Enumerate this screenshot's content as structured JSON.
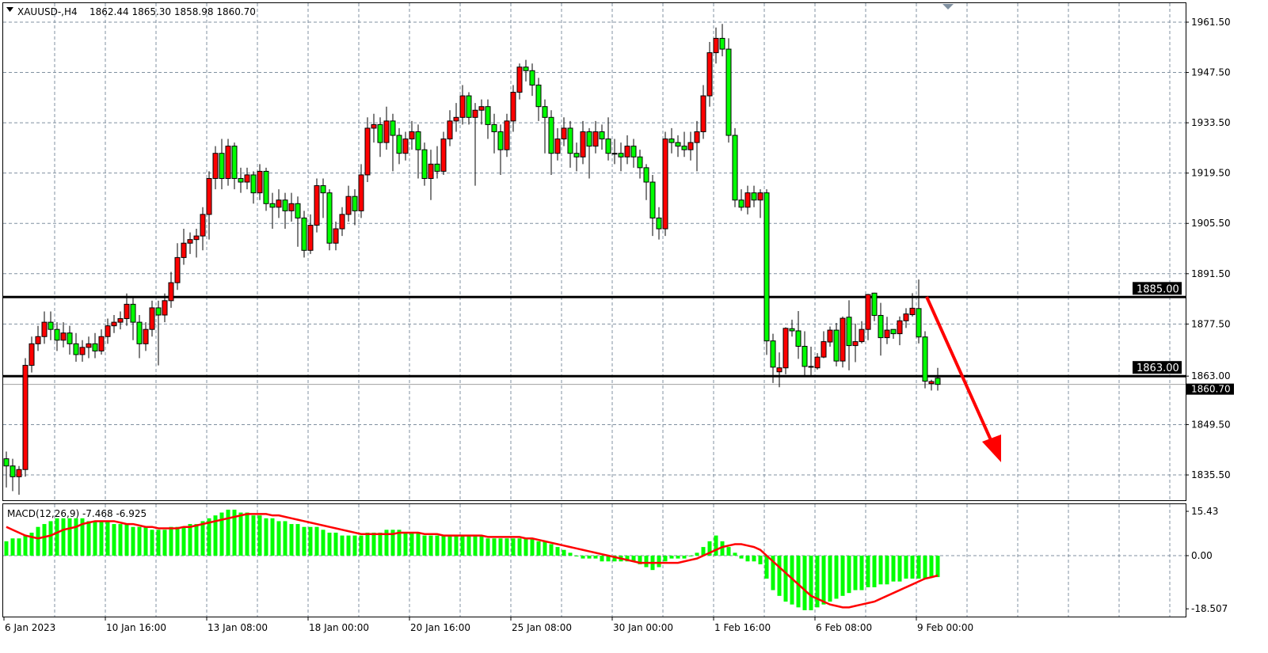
{
  "header": {
    "symbol": "XAUUSD-,H4",
    "ohlc": "1862.44 1865.30 1858.98 1860.70"
  },
  "colors": {
    "bull": "#ff0000",
    "bear": "#00ff00",
    "grid": "#8090a0",
    "macd_hist": "#00ff00",
    "macd_signal": "#ff0000",
    "arrow": "#ff0000"
  },
  "price_axis": {
    "ticks": [
      "1961.50",
      "1947.50",
      "1933.50",
      "1919.50",
      "1905.50",
      "1891.50",
      "1877.50",
      "1863.00",
      "1849.50",
      "1835.50"
    ],
    "current_price": "1860.70"
  },
  "levels": [
    {
      "price": 1885.0,
      "label": "1885.00"
    },
    {
      "price": 1863.0,
      "label": "1863.00"
    }
  ],
  "macd": {
    "label": "MACD(12,26,9) -7.468 -6.925",
    "axis": [
      "15.43",
      "0.00",
      "-18.507"
    ]
  },
  "time_axis": [
    "6 Jan 2023",
    "10 Jan 16:00",
    "13 Jan 08:00",
    "18 Jan 00:00",
    "20 Jan 16:00",
    "25 Jan 08:00",
    "30 Jan 00:00",
    "1 Feb 16:00",
    "6 Feb 08:00",
    "9 Feb 00:00"
  ],
  "chart_data": {
    "type": "candlestick",
    "timeframe": "H4",
    "y_range": [
      1830,
      1965
    ],
    "grid": true,
    "ohlc": [
      [
        1840,
        1842,
        1832,
        1838
      ],
      [
        1838,
        1840,
        1831,
        1835
      ],
      [
        1835,
        1838,
        1830,
        1837
      ],
      [
        1837,
        1868,
        1835,
        1866
      ],
      [
        1866,
        1874,
        1864,
        1872
      ],
      [
        1872,
        1877,
        1870,
        1874
      ],
      [
        1874,
        1881,
        1872,
        1878
      ],
      [
        1878,
        1881,
        1873,
        1876
      ],
      [
        1876,
        1878,
        1870,
        1873
      ],
      [
        1873,
        1878,
        1871,
        1875
      ],
      [
        1875,
        1877,
        1869,
        1872
      ],
      [
        1872,
        1875,
        1867,
        1869
      ],
      [
        1869,
        1873,
        1867,
        1871
      ],
      [
        1871,
        1874,
        1868,
        1872
      ],
      [
        1872,
        1875,
        1868,
        1870
      ],
      [
        1870,
        1876,
        1869,
        1874
      ],
      [
        1874,
        1879,
        1872,
        1877
      ],
      [
        1877,
        1880,
        1875,
        1878
      ],
      [
        1878,
        1881,
        1876,
        1879
      ],
      [
        1879,
        1886,
        1877,
        1883
      ],
      [
        1883,
        1885,
        1873,
        1878
      ],
      [
        1878,
        1880,
        1868,
        1872
      ],
      [
        1872,
        1878,
        1870,
        1876
      ],
      [
        1876,
        1884,
        1874,
        1882
      ],
      [
        1882,
        1884,
        1866,
        1880
      ],
      [
        1880,
        1886,
        1878,
        1884
      ],
      [
        1884,
        1892,
        1882,
        1889
      ],
      [
        1889,
        1900,
        1887,
        1896
      ],
      [
        1896,
        1904,
        1894,
        1900
      ],
      [
        1900,
        1903,
        1897,
        1901
      ],
      [
        1901,
        1904,
        1896,
        1902
      ],
      [
        1902,
        1910,
        1898,
        1908
      ],
      [
        1908,
        1920,
        1901,
        1918
      ],
      [
        1918,
        1927,
        1915,
        1925
      ],
      [
        1925,
        1929,
        1915,
        1918
      ],
      [
        1918,
        1929,
        1916,
        1927
      ],
      [
        1927,
        1928,
        1915,
        1918
      ],
      [
        1918,
        1921,
        1914,
        1917
      ],
      [
        1917,
        1921,
        1915,
        1919
      ],
      [
        1919,
        1920,
        1911,
        1914
      ],
      [
        1914,
        1922,
        1912,
        1920
      ],
      [
        1920,
        1921,
        1909,
        1911
      ],
      [
        1911,
        1914,
        1904,
        1910
      ],
      [
        1910,
        1915,
        1907,
        1912
      ],
      [
        1912,
        1914,
        1904,
        1909
      ],
      [
        1909,
        1914,
        1906,
        1911
      ],
      [
        1911,
        1913,
        1899,
        1907
      ],
      [
        1907,
        1909,
        1896,
        1898
      ],
      [
        1898,
        1908,
        1897,
        1905
      ],
      [
        1905,
        1918,
        1903,
        1916
      ],
      [
        1916,
        1918,
        1907,
        1914
      ],
      [
        1914,
        1915,
        1898,
        1900
      ],
      [
        1900,
        1906,
        1898,
        1904
      ],
      [
        1904,
        1910,
        1902,
        1908
      ],
      [
        1908,
        1916,
        1906,
        1913
      ],
      [
        1913,
        1915,
        1905,
        1909
      ],
      [
        1909,
        1922,
        1907,
        1919
      ],
      [
        1919,
        1935,
        1917,
        1932
      ],
      [
        1932,
        1936,
        1928,
        1933
      ],
      [
        1933,
        1935,
        1924,
        1928
      ],
      [
        1928,
        1938,
        1926,
        1934
      ],
      [
        1934,
        1936,
        1920,
        1930
      ],
      [
        1930,
        1932,
        1922,
        1925
      ],
      [
        1925,
        1931,
        1923,
        1929
      ],
      [
        1929,
        1934,
        1926,
        1931
      ],
      [
        1931,
        1933,
        1918,
        1926
      ],
      [
        1926,
        1928,
        1916,
        1918
      ],
      [
        1918,
        1926,
        1912,
        1922
      ],
      [
        1922,
        1927,
        1918,
        1920
      ],
      [
        1920,
        1931,
        1919,
        1929
      ],
      [
        1929,
        1937,
        1927,
        1934
      ],
      [
        1934,
        1939,
        1931,
        1935
      ],
      [
        1935,
        1944,
        1933,
        1941
      ],
      [
        1941,
        1942,
        1933,
        1935
      ],
      [
        1935,
        1939,
        1916,
        1937
      ],
      [
        1937,
        1940,
        1933,
        1938
      ],
      [
        1938,
        1940,
        1929,
        1933
      ],
      [
        1933,
        1936,
        1925,
        1931
      ],
      [
        1931,
        1933,
        1919,
        1926
      ],
      [
        1926,
        1936,
        1924,
        1934
      ],
      [
        1934,
        1944,
        1931,
        1942
      ],
      [
        1942,
        1950,
        1940,
        1949
      ],
      [
        1949,
        1951,
        1945,
        1948
      ],
      [
        1948,
        1950,
        1941,
        1944
      ],
      [
        1944,
        1946,
        1934,
        1938
      ],
      [
        1938,
        1940,
        1925,
        1935
      ],
      [
        1935,
        1937,
        1919,
        1925
      ],
      [
        1925,
        1932,
        1923,
        1929
      ],
      [
        1929,
        1935,
        1927,
        1932
      ],
      [
        1932,
        1934,
        1921,
        1925
      ],
      [
        1925,
        1928,
        1920,
        1924
      ],
      [
        1924,
        1934,
        1922,
        1931
      ],
      [
        1931,
        1932,
        1918,
        1927
      ],
      [
        1927,
        1934,
        1925,
        1931
      ],
      [
        1931,
        1933,
        1926,
        1929
      ],
      [
        1929,
        1935,
        1923,
        1925
      ],
      [
        1925,
        1929,
        1922,
        1925
      ],
      [
        1925,
        1928,
        1920,
        1924
      ],
      [
        1924,
        1930,
        1922,
        1927
      ],
      [
        1927,
        1929,
        1921,
        1924
      ],
      [
        1924,
        1926,
        1918,
        1921
      ],
      [
        1921,
        1922,
        1912,
        1917
      ],
      [
        1917,
        1919,
        1902,
        1907
      ],
      [
        1907,
        1910,
        1901,
        1904
      ],
      [
        1904,
        1931,
        1902,
        1929
      ],
      [
        1929,
        1932,
        1925,
        1928
      ],
      [
        1928,
        1930,
        1924,
        1927
      ],
      [
        1927,
        1931,
        1924,
        1926
      ],
      [
        1926,
        1931,
        1923,
        1928
      ],
      [
        1928,
        1934,
        1920,
        1931
      ],
      [
        1931,
        1944,
        1929,
        1941
      ],
      [
        1941,
        1956,
        1938,
        1953
      ],
      [
        1953,
        1960,
        1950,
        1957
      ],
      [
        1957,
        1961,
        1952,
        1954
      ],
      [
        1954,
        1957,
        1928,
        1930
      ],
      [
        1930,
        1932,
        1910,
        1912
      ],
      [
        1912,
        1915,
        1909,
        1910
      ],
      [
        1910,
        1916,
        1908,
        1914
      ],
      [
        1914,
        1916,
        1910,
        1912
      ],
      [
        1912,
        1915,
        1907,
        1914
      ],
      [
        1914,
        1915,
        1868.9,
        1872.8
      ],
      [
        1872.8,
        1874.8,
        1861.1,
        1865.5
      ],
      [
        1864.2,
        1869.6,
        1859.9,
        1865.3
      ],
      [
        1865.3,
        1876.6,
        1863.5,
        1876.3
      ],
      [
        1876.2,
        1878.7,
        1874.0,
        1875.6
      ],
      [
        1875.6,
        1881.1,
        1867.8,
        1871.3
      ],
      [
        1871.3,
        1875.5,
        1863.1,
        1865.7
      ],
      [
        1865.7,
        1871.2,
        1863.1,
        1865.5
      ],
      [
        1865.3,
        1869.4,
        1864.8,
        1868.3
      ],
      [
        1868.3,
        1875.5,
        1868.0,
        1872.6
      ],
      [
        1872.5,
        1876.8,
        1871.2,
        1875.8
      ],
      [
        1875.8,
        1877.8,
        1865.7,
        1867.2
      ],
      [
        1867.2,
        1879.6,
        1865.4,
        1879.1
      ],
      [
        1879.4,
        1884.1,
        1864.6,
        1871.5
      ],
      [
        1871.5,
        1877.6,
        1866.9,
        1872.6
      ],
      [
        1872.6,
        1878.3,
        1872.1,
        1876.0
      ],
      [
        1876.0,
        1885.9,
        1873.0,
        1885.7
      ],
      [
        1886.1,
        1886.2,
        1878.3,
        1879.9
      ],
      [
        1879.9,
        1883.4,
        1868.7,
        1873.7
      ],
      [
        1873.7,
        1879.5,
        1871.9,
        1875.8
      ],
      [
        1876.0,
        1876.0,
        1873.4,
        1874.8
      ],
      [
        1874.8,
        1879.6,
        1871.6,
        1878.4
      ],
      [
        1878.4,
        1881.9,
        1876.4,
        1880.3
      ],
      [
        1880.1,
        1886.1,
        1879.6,
        1881.9
      ],
      [
        1881.8,
        1889.9,
        1872.1,
        1873.9
      ],
      [
        1873.9,
        1875.5,
        1859.6,
        1861.6
      ],
      [
        1860.9,
        1862.0,
        1859.0,
        1861.5
      ],
      [
        1862.44,
        1865.3,
        1858.98,
        1860.7
      ]
    ],
    "macd_histogram": [
      5,
      6,
      6,
      7,
      8,
      10,
      11,
      12,
      13,
      13,
      13,
      13,
      13,
      12,
      12,
      12,
      12,
      11,
      11,
      11,
      10,
      10,
      10,
      9,
      9,
      9,
      10,
      10,
      10,
      11,
      11,
      12,
      13,
      14,
      15,
      16,
      16,
      15,
      15,
      14,
      14,
      13,
      13,
      12,
      12,
      11,
      11,
      10,
      10,
      10,
      9,
      8,
      8,
      7,
      7,
      7,
      7,
      8,
      8,
      8,
      9,
      9,
      9,
      8,
      8,
      8,
      7,
      7,
      7,
      7,
      7,
      7,
      7,
      7,
      7,
      7,
      6,
      6,
      6,
      6,
      6,
      6,
      6,
      6,
      5,
      5,
      4,
      3,
      2,
      1,
      0,
      -1,
      -1,
      -1,
      -2,
      -2,
      -2,
      -2,
      -2,
      -2,
      -3,
      -4,
      -5,
      -4,
      -2,
      -1,
      -1,
      -1,
      0,
      1,
      3,
      5,
      7,
      5,
      3,
      1,
      -1,
      -2,
      -2,
      -3,
      -8,
      -12,
      -14,
      -16,
      -17,
      -18,
      -19,
      -19,
      -18,
      -17,
      -16,
      -15,
      -14,
      -13,
      -12,
      -12,
      -11,
      -11,
      -10,
      -10,
      -9,
      -9,
      -8,
      -8,
      -8,
      -8,
      -7.5,
      -7.468
    ],
    "macd_signal": [
      10,
      9,
      8,
      7,
      6.5,
      6,
      6.5,
      7,
      8,
      9,
      9.5,
      10,
      11,
      11.5,
      12,
      12,
      12,
      12,
      11.5,
      11,
      11,
      10.5,
      10,
      10,
      9.5,
      9.5,
      9.5,
      9.5,
      10,
      10,
      10.5,
      11,
      11.5,
      12,
      12.5,
      13,
      13.5,
      14,
      14.5,
      14.5,
      14.5,
      14.5,
      14,
      14,
      13.5,
      13,
      12.5,
      12,
      11.5,
      11,
      10.5,
      10,
      9.5,
      9,
      8.5,
      8,
      7.5,
      7.5,
      7.5,
      7.5,
      7.5,
      7.5,
      8,
      8,
      8,
      8,
      7.5,
      7.5,
      7.5,
      7,
      7,
      7,
      7,
      7,
      7,
      7,
      6.5,
      6.5,
      6.5,
      6.5,
      6.5,
      6.5,
      6,
      6,
      5.5,
      5,
      4.5,
      4,
      3.5,
      3,
      2.5,
      2,
      1.5,
      1,
      0.5,
      0,
      -0.5,
      -1,
      -1.5,
      -2,
      -2.5,
      -2.5,
      -2.5,
      -2.5,
      -2.5,
      -2.5,
      -2.5,
      -2,
      -1.5,
      -1,
      0,
      1,
      2,
      3,
      3.5,
      4,
      4,
      3.5,
      3,
      2,
      0,
      -2,
      -4,
      -6,
      -8,
      -10,
      -12,
      -14,
      -15,
      -16,
      -17,
      -17.5,
      -18,
      -18,
      -17.5,
      -17,
      -16.5,
      -16,
      -15,
      -14,
      -13,
      -12,
      -11,
      -10,
      -9,
      -8,
      -7.5,
      -6.925
    ],
    "macd_range": [
      -18.507,
      15.43
    ]
  }
}
